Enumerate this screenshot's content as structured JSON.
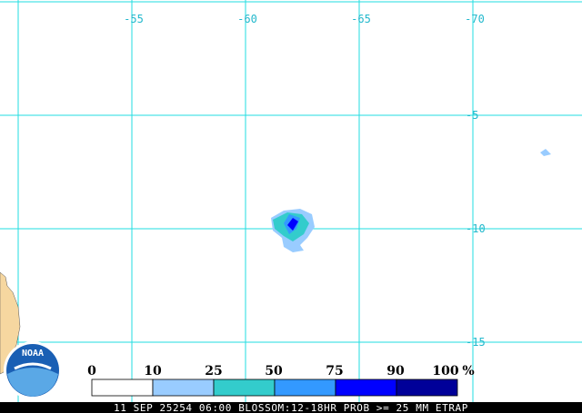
{
  "map": {
    "longitude_labels": [
      "-55",
      "-60",
      "-65",
      "-70"
    ],
    "latitude_labels": [
      "-5",
      "-10",
      "-15"
    ]
  },
  "legend": {
    "labels": [
      "0",
      "10",
      "25",
      "50",
      "75",
      "90",
      "100"
    ],
    "unit": "%"
  },
  "logo": "NOAA",
  "caption": "11 SEP 25254 06:00 BLOSSOM:12-18HR PROB >= 25 MM ETRAP"
}
